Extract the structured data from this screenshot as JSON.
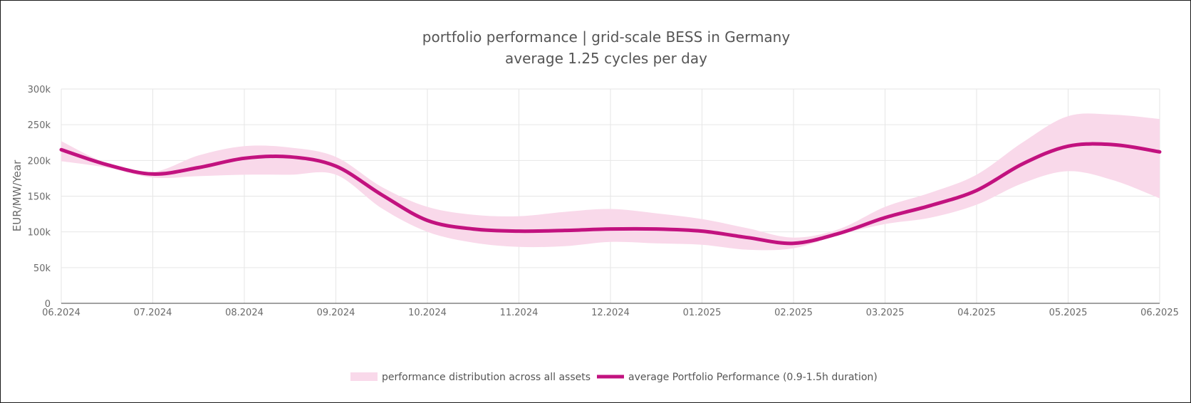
{
  "chart_data": {
    "type": "line",
    "title": "portfolio performance | grid-scale BESS in Germany",
    "subtitle": "average 1.25 cycles per day",
    "ylabel": "EUR/MW/Year",
    "xlabel": "",
    "ylim": [
      0,
      300000
    ],
    "yticks": [
      0,
      50000,
      100000,
      150000,
      200000,
      250000,
      300000
    ],
    "ytick_labels": [
      "0",
      "50k",
      "100k",
      "150k",
      "200k",
      "250k",
      "300k"
    ],
    "categories": [
      "06.2024",
      "07.2024",
      "08.2024",
      "09.2024",
      "10.2024",
      "11.2024",
      "12.2024",
      "01.2025",
      "02.2025",
      "03.2025",
      "04.2025",
      "05.2025",
      "06.2025"
    ],
    "grid": true,
    "legend_position": "bottom",
    "colors": {
      "line": "#c2127f",
      "band": "#f9d9ea"
    },
    "series": [
      {
        "name": "performance distribution across all assets",
        "type": "band",
        "x": [
          0,
          0.5,
          1,
          1.5,
          2,
          2.5,
          3,
          3.5,
          4,
          4.5,
          5,
          5.5,
          6,
          6.5,
          7,
          7.5,
          8,
          8.5,
          9,
          9.5,
          10,
          10.5,
          11,
          11.5,
          12
        ],
        "upper": [
          227000,
          196000,
          184000,
          207000,
          220000,
          218000,
          205000,
          163000,
          135000,
          124000,
          122000,
          128000,
          132000,
          126000,
          118000,
          105000,
          92000,
          104000,
          135000,
          155000,
          180000,
          225000,
          262000,
          264000,
          258000
        ],
        "lower": [
          199000,
          190000,
          176000,
          178000,
          180000,
          180000,
          180000,
          133000,
          100000,
          85000,
          79000,
          80000,
          86000,
          84000,
          82000,
          75000,
          77000,
          96000,
          111000,
          120000,
          138000,
          168000,
          185000,
          172000,
          147000
        ]
      },
      {
        "name": "average Portfolio Performance (0.9-1.5h duration)",
        "type": "line",
        "x": [
          0,
          0.5,
          1,
          1.5,
          2,
          2.5,
          3,
          3.5,
          4,
          4.5,
          5,
          5.5,
          6,
          6.5,
          7,
          7.5,
          8,
          8.5,
          9,
          9.5,
          10,
          10.5,
          11,
          11.5,
          12
        ],
        "values": [
          215000,
          194000,
          181000,
          190000,
          203000,
          205000,
          192000,
          152000,
          116000,
          104000,
          101000,
          102000,
          104000,
          104000,
          101000,
          92000,
          84000,
          98000,
          120000,
          137000,
          158000,
          195000,
          220000,
          222000,
          212000
        ]
      }
    ]
  }
}
